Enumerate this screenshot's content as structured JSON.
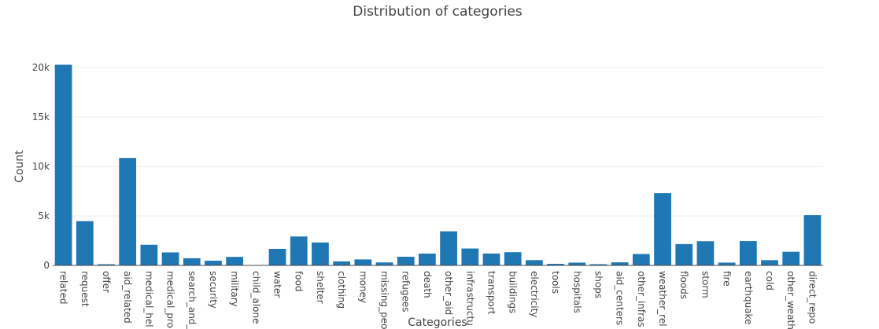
{
  "chart_data": {
    "type": "bar",
    "title": "Distribution of categories",
    "x_label": "Categories",
    "y_label": "Count",
    "categories": [
      "related",
      "request",
      "offer",
      "aid_related",
      "medical_hel",
      "medical_pro",
      "search_and_",
      "security",
      "military",
      "child_alone",
      "water",
      "food",
      "shelter",
      "clothing",
      "money",
      "missing_peo",
      "refugees",
      "death",
      "other_aid",
      "infrastructu",
      "transport",
      "buildings",
      "electricity",
      "tools",
      "hospitals",
      "shops",
      "aid_centers",
      "other_infras",
      "weather_rel",
      "floods",
      "storm",
      "fire",
      "earthquake",
      "cold",
      "other_weath",
      "direct_repo"
    ],
    "values": [
      20282,
      4474,
      118,
      10860,
      2084,
      1313,
      724,
      471,
      860,
      0,
      1672,
      2923,
      2314,
      405,
      604,
      298,
      875,
      1194,
      3446,
      1705,
      1201,
      1333,
      532,
      159,
      283,
      120,
      309,
      1151,
      7297,
      2155,
      2443,
      282,
      2455,
      530,
      1376,
      5075
    ],
    "color": "#1f77b4",
    "ylim": [
      0,
      21000
    ],
    "yticks": [
      0,
      {
        "value": 5000,
        "label": "5k"
      },
      {
        "value": 10000,
        "label": "10k"
      },
      {
        "value": 15000,
        "label": "15k"
      },
      {
        "value": 20000,
        "label": "20k"
      }
    ],
    "grid": true
  }
}
